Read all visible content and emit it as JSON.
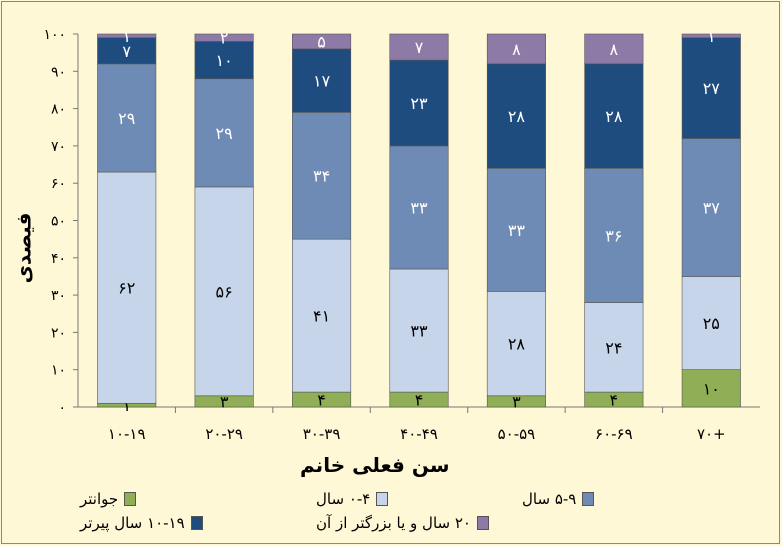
{
  "chart_data": {
    "type": "bar",
    "stacked": true,
    "xlabel": "سن فعلی خانم",
    "ylabel": "فیصدی",
    "ylim": [
      0,
      100
    ],
    "yticks": [
      "۰",
      "۱۰",
      "۲۰",
      "۳۰",
      "۴۰",
      "۵۰",
      "۶۰",
      "۷۰",
      "۸۰",
      "۹۰",
      "۱۰۰"
    ],
    "categories": [
      "۱۰-۱۹",
      "۲۰-۲۹",
      "۳۰-۳۹",
      "۴۰-۴۹",
      "۵۰-۵۹",
      "۶۰-۶۹",
      "۷۰+"
    ],
    "series": [
      {
        "name": "جوانتر",
        "color": "#8FAE55",
        "values": [
          1,
          3,
          4,
          4,
          3,
          4,
          10
        ],
        "labels": [
          "۱",
          "۳",
          "۴",
          "۴",
          "۳",
          "۴",
          "۱۰"
        ]
      },
      {
        "name": "۰-۴ سال",
        "color": "#C7D5EB",
        "values": [
          62,
          56,
          41,
          33,
          28,
          24,
          25
        ],
        "labels": [
          "۶۲",
          "۵۶",
          "۴۱",
          "۳۳",
          "۲۸",
          "۲۴",
          "۲۵"
        ]
      },
      {
        "name": "۵-۹ سال",
        "color": "#6E8BB5",
        "values": [
          29,
          29,
          34,
          33,
          33,
          36,
          37
        ],
        "labels": [
          "۲۹",
          "۲۹",
          "۳۴",
          "۳۳",
          "۳۳",
          "۳۶",
          "۳۷"
        ]
      },
      {
        "name": "۱۰-۱۹ سال پیرتر",
        "color": "#1E4C7E",
        "values": [
          7,
          10,
          17,
          23,
          28,
          28,
          27
        ],
        "labels": [
          "۷",
          "۱۰",
          "۱۷",
          "۲۳",
          "۲۸",
          "۲۸",
          "۲۷"
        ]
      },
      {
        "name": "۲۰ سال و یا بزرگتر از آن",
        "color": "#8E7AA6",
        "values": [
          1,
          2,
          5,
          7,
          8,
          8,
          1
        ],
        "labels": [
          "۱",
          "۲",
          "۵",
          "۷",
          "۸",
          "۸",
          "۱"
        ]
      }
    ]
  }
}
